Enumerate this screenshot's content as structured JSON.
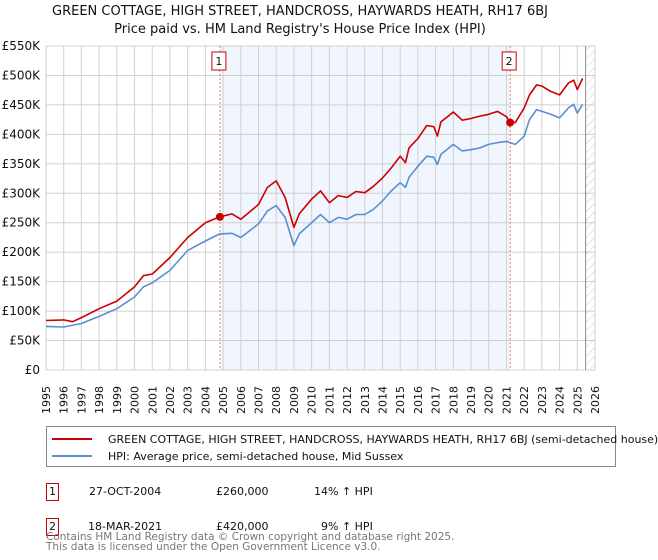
{
  "chart_data": {
    "type": "line",
    "title": "GREEN COTTAGE, HIGH STREET, HANDCROSS, HAYWARDS HEATH, RH17 6BJ",
    "subtitle": "Price paid vs. HM Land Registry's House Price Index (HPI)",
    "xlim": [
      1995,
      2026
    ],
    "ylim": [
      0,
      550000
    ],
    "y_ticks": [
      0,
      50000,
      100000,
      150000,
      200000,
      250000,
      300000,
      350000,
      400000,
      450000,
      500000,
      550000
    ],
    "y_tick_labels": [
      "£0",
      "£50K",
      "£100K",
      "£150K",
      "£200K",
      "£250K",
      "£300K",
      "£350K",
      "£400K",
      "£450K",
      "£500K",
      "£550K"
    ],
    "x_ticks": [
      1995,
      1996,
      1997,
      1998,
      1999,
      2000,
      2001,
      2002,
      2003,
      2004,
      2005,
      2006,
      2007,
      2008,
      2009,
      2010,
      2011,
      2012,
      2013,
      2014,
      2015,
      2016,
      2017,
      2018,
      2019,
      2020,
      2021,
      2022,
      2023,
      2024,
      2025,
      2026
    ],
    "x_tick_labels": [
      "1995",
      "1996",
      "1997",
      "1998",
      "1999",
      "2000",
      "2001",
      "2002",
      "2003",
      "2004",
      "2005",
      "2006",
      "2007",
      "2008",
      "2009",
      "2010",
      "2011",
      "2012",
      "2013",
      "2014",
      "2015",
      "2016",
      "2017",
      "2018",
      "2019",
      "2020",
      "2021",
      "2022",
      "2023",
      "2024",
      "2025",
      "2026"
    ],
    "grid": true,
    "shaded_range": [
      2004.82,
      2021.21
    ],
    "forecast_hatch_from": 2025.47,
    "series": [
      {
        "name": "GREEN COTTAGE, HIGH STREET, HANDCROSS, HAYWARDS HEATH, RH17 6BJ (semi-detached house)",
        "color": "#cc0000",
        "x": [
          1995,
          1996,
          1996.5,
          1997,
          1998,
          1999,
          2000,
          2000.5,
          2001,
          2002,
          2003,
          2004,
          2004.82,
          2005.5,
          2006,
          2007,
          2007.5,
          2008,
          2008.5,
          2009,
          2009.3,
          2010,
          2010.5,
          2011,
          2011.5,
          2012,
          2012.5,
          2013,
          2013.5,
          2014,
          2014.5,
          2015,
          2015.3,
          2015.5,
          2016,
          2016.5,
          2016.9,
          2017.1,
          2017.3,
          2018,
          2018.5,
          2019,
          2019.5,
          2020,
          2020.5,
          2021,
          2021.21,
          2021.5,
          2022,
          2022.3,
          2022.7,
          2023,
          2023.5,
          2024,
          2024.5,
          2024.8,
          2025,
          2025.3
        ],
        "y": [
          84000,
          85000,
          82000,
          89000,
          104000,
          117000,
          141000,
          160000,
          163000,
          191000,
          225000,
          250000,
          260000,
          265000,
          256000,
          281000,
          310000,
          321000,
          293000,
          242000,
          265000,
          290000,
          304000,
          284000,
          296000,
          293000,
          303000,
          301000,
          312000,
          326000,
          343000,
          363000,
          352000,
          377000,
          393000,
          415000,
          413000,
          397000,
          421000,
          438000,
          424000,
          427000,
          431000,
          434000,
          439000,
          430000,
          420000,
          420000,
          445000,
          467000,
          484000,
          482000,
          473000,
          467000,
          487000,
          492000,
          476000,
          495000
        ]
      },
      {
        "name": "HPI: Average price, semi-detached house, Mid Sussex",
        "color": "#5b8fd0",
        "x": [
          1995,
          1996,
          1997,
          1998,
          1999,
          2000,
          2000.5,
          2001,
          2002,
          2003,
          2004,
          2004.8,
          2005.5,
          2006,
          2007,
          2007.5,
          2008,
          2008.5,
          2009,
          2009.3,
          2010,
          2010.5,
          2011,
          2011.5,
          2012,
          2012.5,
          2013,
          2013.5,
          2014,
          2014.5,
          2015,
          2015.3,
          2015.5,
          2016,
          2016.5,
          2016.9,
          2017.1,
          2017.3,
          2018,
          2018.5,
          2019,
          2019.5,
          2020,
          2020.5,
          2021,
          2021.5,
          2022,
          2022.3,
          2022.7,
          2023,
          2023.5,
          2024,
          2024.5,
          2024.8,
          2025,
          2025.3
        ],
        "y": [
          74000,
          73000,
          79000,
          91000,
          104000,
          124000,
          141000,
          148000,
          169000,
          203000,
          219000,
          231000,
          232000,
          225000,
          248000,
          270000,
          279000,
          259000,
          211000,
          231000,
          250000,
          264000,
          250000,
          259000,
          256000,
          264000,
          264000,
          273000,
          287000,
          304000,
          318000,
          310000,
          327000,
          346000,
          363000,
          361000,
          349000,
          366000,
          383000,
          372000,
          374000,
          377000,
          383000,
          386000,
          388000,
          383000,
          397000,
          425000,
          442000,
          439000,
          434000,
          428000,
          445000,
          451000,
          436000,
          451000
        ]
      }
    ],
    "annotations": [
      {
        "label": "1",
        "x": 2004.82,
        "y": 260000
      },
      {
        "label": "2",
        "x": 2021.21,
        "y": 420000
      }
    ],
    "legend": "below"
  },
  "legend": {
    "items": [
      {
        "label": "GREEN COTTAGE, HIGH STREET, HANDCROSS, HAYWARDS HEATH, RH17 6BJ (semi-detached house)"
      },
      {
        "label": "HPI: Average price, semi-detached house, Mid Sussex"
      }
    ]
  },
  "sales": [
    {
      "num": "1",
      "date": "27-OCT-2004",
      "price": "£260,000",
      "hpi": "14% ↑ HPI"
    },
    {
      "num": "2",
      "date": "18-MAR-2021",
      "price": "£420,000",
      "hpi": "9% ↑ HPI"
    }
  ],
  "footer": {
    "line1": "Contains HM Land Registry data © Crown copyright and database right 2025.",
    "line2": "This data is licensed under the Open Government Licence v3.0."
  }
}
